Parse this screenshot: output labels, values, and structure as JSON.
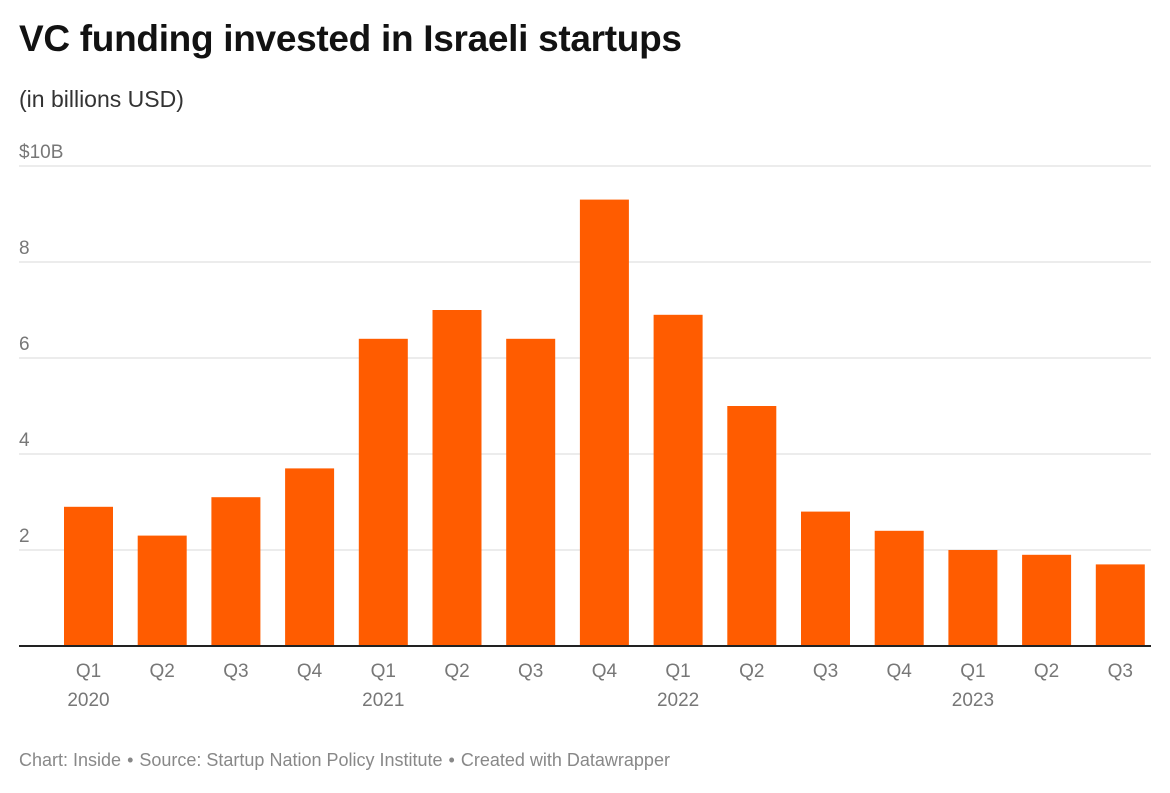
{
  "header": {
    "title": "VC funding invested in Israeli startups",
    "subtitle": "(in billions USD)"
  },
  "footer": {
    "chart_credit": "Chart: Inside",
    "separator": "•",
    "source": "Source: Startup Nation Policy Institute",
    "tool": "Created with Datawrapper"
  },
  "colors": {
    "bar": "#ff5c00",
    "grid": "#e1e1e1",
    "axis": "#222222",
    "tick_label": "#777777"
  },
  "chart_data": {
    "type": "bar",
    "title": "VC funding invested in Israeli startups",
    "subtitle": "(in billions USD)",
    "xlabel": "",
    "ylabel": "",
    "ylim": [
      0,
      10
    ],
    "yticks": [
      2,
      4,
      6,
      8,
      10
    ],
    "ytick_labels": [
      "2",
      "4",
      "6",
      "8",
      "$10B"
    ],
    "grid": true,
    "categories": [
      "Q1 2020",
      "Q2 2020",
      "Q3 2020",
      "Q4 2020",
      "Q1 2021",
      "Q2 2021",
      "Q3 2021",
      "Q4 2021",
      "Q1 2022",
      "Q2 2022",
      "Q3 2022",
      "Q4 2022",
      "Q1 2023",
      "Q2 2023",
      "Q3 2023"
    ],
    "quarter_labels": [
      "Q1",
      "Q2",
      "Q3",
      "Q4",
      "Q1",
      "Q2",
      "Q3",
      "Q4",
      "Q1",
      "Q2",
      "Q3",
      "Q4",
      "Q1",
      "Q2",
      "Q3"
    ],
    "year_labels": [
      "2020",
      "",
      "",
      "",
      "2021",
      "",
      "",
      "",
      "2022",
      "",
      "",
      "",
      "2023",
      "",
      ""
    ],
    "values": [
      2.9,
      2.3,
      3.1,
      3.7,
      6.4,
      7.0,
      6.4,
      9.3,
      6.9,
      5.0,
      2.8,
      2.4,
      2.0,
      1.9,
      1.7
    ]
  }
}
